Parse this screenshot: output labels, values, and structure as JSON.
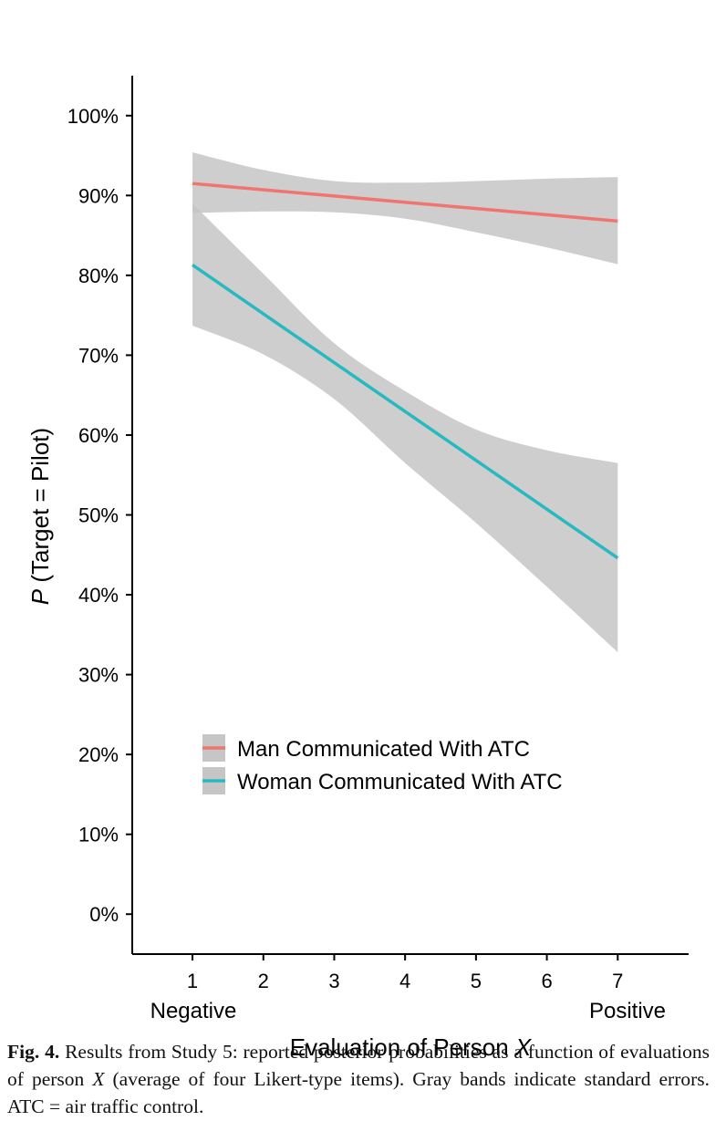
{
  "chart_data": {
    "type": "line",
    "x_ticks": [
      1,
      2,
      3,
      4,
      5,
      6,
      7
    ],
    "x_tick_labels": [
      "1",
      "2",
      "3",
      "4",
      "5",
      "6",
      "7"
    ],
    "x_anchor_labels": {
      "low": "Negative",
      "high": "Positive"
    },
    "xlabel": "Evaluation of Person",
    "xlabel_italic": "X",
    "ylabel_italic": "P",
    "ylabel": "(Target = Pilot)",
    "xlim": [
      0.15,
      8.0
    ],
    "ylim": [
      -5,
      105
    ],
    "y_ticks": [
      0,
      10,
      20,
      30,
      40,
      50,
      60,
      70,
      80,
      90,
      100
    ],
    "y_tick_labels": [
      "0%",
      "10%",
      "20%",
      "30%",
      "40%",
      "50%",
      "60%",
      "70%",
      "80%",
      "90%",
      "100%"
    ],
    "series": [
      {
        "name": "Man Communicated With ATC",
        "color": "#f07470",
        "x": [
          1,
          7
        ],
        "values": [
          91.5,
          86.8
        ],
        "band_x": [
          1,
          2,
          3,
          4,
          5,
          6,
          7
        ],
        "band_upper": [
          95.4,
          93.2,
          91.8,
          91.6,
          91.8,
          92.1,
          92.3
        ],
        "band_lower": [
          87.8,
          88.0,
          87.9,
          87.1,
          85.4,
          83.5,
          81.4
        ]
      },
      {
        "name": "Woman Communicated With ATC",
        "color": "#26b9c0",
        "x": [
          1,
          7
        ],
        "values": [
          81.3,
          44.6
        ],
        "band_x": [
          1,
          2,
          3,
          4,
          5,
          6,
          7
        ],
        "band_upper": [
          89.0,
          80.2,
          71.5,
          65.5,
          60.7,
          58.1,
          56.5
        ],
        "band_lower": [
          73.7,
          70.1,
          64.5,
          56.5,
          49.0,
          41.0,
          32.8
        ]
      }
    ],
    "band_color": "#c6c6c6",
    "legend_position": "lower-left",
    "grid": false
  },
  "caption": {
    "label": "Fig. 4.",
    "text": "Results from Study 5: reported posterior probabilities as a function of evaluations of person",
    "person_var": "X",
    "text_end": "(average of four Likert-type items). Gray bands indicate standard errors. ATC = air traffic control."
  }
}
